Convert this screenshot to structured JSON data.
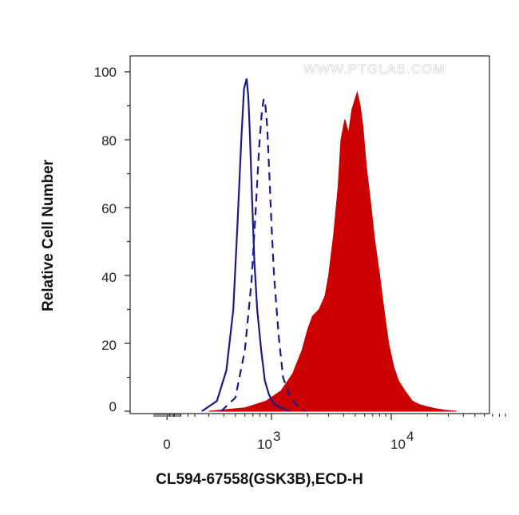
{
  "chart_data": {
    "type": "area",
    "xlabel": "CL594-67558(GSK3B),ECD-H",
    "ylabel": "Relative Cell Number",
    "watermark": "WWW.PTGLAB.COM",
    "ylim": [
      0,
      100
    ],
    "yticks": [
      "0",
      "20",
      "40",
      "60",
      "80",
      "100"
    ],
    "xaxis": {
      "scale": "biexponential",
      "ticks": [
        {
          "value": 0,
          "base": "0",
          "exp": ""
        },
        {
          "value": 1000,
          "base": "10",
          "exp": "3"
        },
        {
          "value": 10000,
          "base": "10",
          "exp": "4"
        }
      ]
    },
    "grid": false,
    "legend": "none",
    "colors": {
      "sample": "#cc0000",
      "control": "#1a1a8c"
    },
    "series": [
      {
        "style": "filled",
        "color": "#cc0000",
        "x": [
          300,
          600,
          900,
          1200,
          1500,
          1800,
          2000,
          2200,
          2500,
          2800,
          3000,
          3300,
          3600,
          3800,
          4100,
          4400,
          4700,
          5000,
          5200,
          5500,
          5800,
          6200,
          6700,
          7300,
          8000,
          8700,
          9500,
          10500,
          11500,
          13000,
          15000,
          17000,
          19000,
          23000,
          28000,
          35000
        ],
        "y": [
          0,
          1,
          3,
          6,
          11,
          18,
          24,
          28,
          30,
          34,
          40,
          52,
          66,
          80,
          86,
          82,
          89,
          92,
          94,
          90,
          84,
          72,
          62,
          50,
          40,
          30,
          20,
          13,
          9,
          6,
          3,
          2,
          1.5,
          0.8,
          0.3,
          0
        ]
      },
      {
        "style": "solid",
        "color": "#1a1a8c",
        "x": [
          250,
          350,
          420,
          480,
          520,
          560,
          590,
          620,
          640,
          660,
          690,
          720,
          760,
          820,
          880,
          950,
          1050,
          1200,
          1400
        ],
        "y": [
          0,
          3,
          12,
          30,
          55,
          80,
          95,
          98,
          93,
          82,
          62,
          44,
          30,
          18,
          9,
          5,
          2,
          1,
          0
        ]
      },
      {
        "style": "dashed",
        "color": "#1a1a8c",
        "x": [
          380,
          500,
          600,
          680,
          740,
          790,
          830,
          860,
          890,
          920,
          960,
          1000,
          1050,
          1150,
          1250,
          1400,
          1600,
          1900
        ],
        "y": [
          0,
          4,
          18,
          38,
          60,
          78,
          88,
          92,
          90,
          84,
          70,
          55,
          40,
          22,
          10,
          5,
          2,
          0
        ]
      }
    ]
  }
}
